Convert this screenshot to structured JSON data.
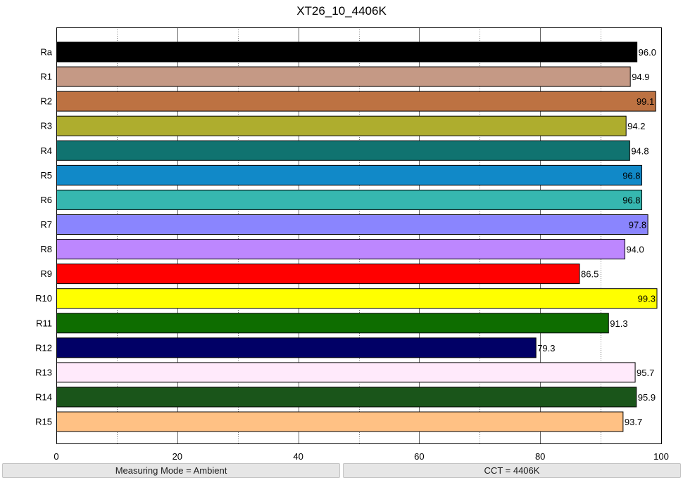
{
  "chart_data": {
    "type": "bar",
    "orientation": "horizontal",
    "title": "XT26_10_4406K",
    "xlabel": "",
    "ylabel": "",
    "xlim": [
      0,
      100
    ],
    "x_ticks": [
      0,
      20,
      40,
      60,
      80,
      100
    ],
    "grid": "vertical lines at 10-unit steps (dotted minor, solid major)",
    "categories": [
      "Ra",
      "R1",
      "R2",
      "R3",
      "R4",
      "R5",
      "R6",
      "R7",
      "R8",
      "R9",
      "R10",
      "R11",
      "R12",
      "R13",
      "R14",
      "R15"
    ],
    "values": [
      96.0,
      94.9,
      99.1,
      94.2,
      94.8,
      96.8,
      96.8,
      97.8,
      94.0,
      86.5,
      99.3,
      91.3,
      79.3,
      95.7,
      95.9,
      93.7
    ],
    "value_labels": [
      "96.0",
      "94.9",
      "99.1",
      "94.2",
      "94.8",
      "96.8",
      "96.8",
      "97.8",
      "94.0",
      "86.5",
      "99.3",
      "91.3",
      "79.3",
      "95.7",
      "95.9",
      "93.7"
    ],
    "colors": [
      "#000000",
      "#c59985",
      "#bd7242",
      "#aead2e",
      "#107370",
      "#1189c8",
      "#36b7b0",
      "#8a85fe",
      "#bd87fe",
      "#ff0000",
      "#ffff00",
      "#0e6d00",
      "#010066",
      "#ffeafb",
      "#1a551a",
      "#ffc184"
    ]
  },
  "status_bar": {
    "measuring_mode": "Measuring Mode = Ambient",
    "cct": "CCT = 4406K"
  }
}
